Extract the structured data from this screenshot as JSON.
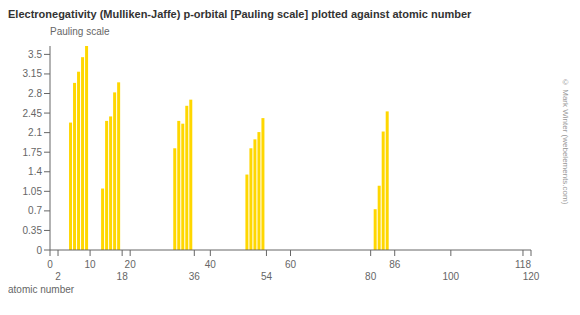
{
  "chart_data": {
    "type": "bar",
    "title": "Electronegativity (Mulliken-Jaffe) p-orbital [Pauling scale] plotted against atomic number",
    "xlabel": "atomic number",
    "ylabel": "Pauling scale",
    "x": [
      5,
      6,
      7,
      8,
      9,
      13,
      14,
      15,
      16,
      17,
      31,
      32,
      33,
      34,
      35,
      49,
      50,
      51,
      52,
      53,
      81,
      82,
      83,
      84
    ],
    "values": [
      2.28,
      2.99,
      3.19,
      3.45,
      3.65,
      1.1,
      2.31,
      2.39,
      2.82,
      3.0,
      1.82,
      2.31,
      2.26,
      2.58,
      2.69,
      1.35,
      1.82,
      1.98,
      2.11,
      2.36,
      0.73,
      1.15,
      2.12,
      2.48
    ],
    "color": "#FFD700",
    "xlim": [
      0,
      120
    ],
    "xticks": [
      0,
      2,
      10,
      18,
      20,
      36,
      40,
      54,
      60,
      80,
      86,
      100,
      118,
      120
    ],
    "ylim": [
      0,
      3.65
    ],
    "yticks": [
      0,
      0.35,
      0.7,
      1.05,
      1.4,
      1.75,
      2.1,
      2.45,
      2.8,
      3.15,
      3.5
    ],
    "grid": false,
    "annotations": [
      "© Mark Winter (webelements.com)"
    ]
  }
}
